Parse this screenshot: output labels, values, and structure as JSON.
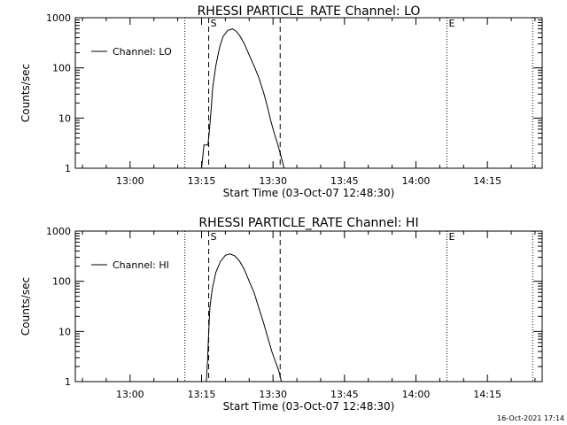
{
  "footer_timestamp": "16-Oct-2021 17:14",
  "chart_data": [
    {
      "type": "line",
      "title": "RHESSI PARTICLE_RATE Channel: LO",
      "xlabel": "Start Time (03-Oct-07 12:48:30)",
      "ylabel": "Counts/sec",
      "yscale": "log",
      "xlim": [
        "12:48:30",
        "14:26:30"
      ],
      "ylim": [
        1,
        1000
      ],
      "x_ticks": [
        "13:00",
        "13:15",
        "13:30",
        "13:45",
        "14:00",
        "14:15"
      ],
      "y_ticks": [
        "1",
        "10",
        "100",
        "1000"
      ],
      "legend": {
        "position": "top-left",
        "label": "Channel: LO"
      },
      "markers": [
        {
          "label": "S",
          "time": "13:16:30",
          "style": "dashed"
        },
        {
          "label": "E",
          "time": "14:06:30",
          "style": "dotted"
        }
      ],
      "vlines": [
        {
          "time": "13:11:30",
          "style": "dotted"
        },
        {
          "time": "13:16:30",
          "style": "dashed"
        },
        {
          "time": "13:31:30",
          "style": "dashed"
        },
        {
          "time": "14:06:30",
          "style": "dotted"
        },
        {
          "time": "14:24:30",
          "style": "dotted"
        }
      ],
      "series": [
        {
          "name": "Channel: LO",
          "points": [
            [
              "13:15:00",
              1.0
            ],
            [
              "13:15:20",
              2.0
            ],
            [
              "13:15:30",
              2.9
            ],
            [
              "13:16:20",
              2.9
            ],
            [
              "13:16:40",
              6.0
            ],
            [
              "13:17:00",
              15
            ],
            [
              "13:17:20",
              40
            ],
            [
              "13:18:00",
              110
            ],
            [
              "13:18:45",
              250
            ],
            [
              "13:19:30",
              420
            ],
            [
              "13:20:30",
              560
            ],
            [
              "13:21:30",
              600
            ],
            [
              "13:22:15",
              540
            ],
            [
              "13:23:00",
              440
            ],
            [
              "13:24:00",
              300
            ],
            [
              "13:25:00",
              180
            ],
            [
              "13:26:00",
              110
            ],
            [
              "13:27:00",
              65
            ],
            [
              "13:28:00",
              33
            ],
            [
              "13:28:45",
              18
            ],
            [
              "13:29:30",
              9
            ],
            [
              "13:30:15",
              5
            ],
            [
              "13:31:00",
              3.0
            ],
            [
              "13:31:30",
              2.0
            ],
            [
              "13:32:20",
              1.0
            ]
          ]
        }
      ]
    },
    {
      "type": "line",
      "title": "RHESSI PARTICLE_RATE Channel: HI",
      "xlabel": "Start Time (03-Oct-07 12:48:30)",
      "ylabel": "Counts/sec",
      "yscale": "log",
      "xlim": [
        "12:48:30",
        "14:26:30"
      ],
      "ylim": [
        1,
        1000
      ],
      "x_ticks": [
        "13:00",
        "13:15",
        "13:30",
        "13:45",
        "14:00",
        "14:15"
      ],
      "y_ticks": [
        "1",
        "10",
        "100",
        "1000"
      ],
      "legend": {
        "position": "top-left",
        "label": "Channel: HI"
      },
      "markers": [
        {
          "label": "S",
          "time": "13:16:30",
          "style": "dashed"
        },
        {
          "label": "E",
          "time": "14:06:30",
          "style": "dotted"
        }
      ],
      "vlines": [
        {
          "time": "13:11:30",
          "style": "dotted"
        },
        {
          "time": "13:16:30",
          "style": "dashed"
        },
        {
          "time": "13:31:30",
          "style": "dashed"
        },
        {
          "time": "14:06:30",
          "style": "dotted"
        },
        {
          "time": "14:24:30",
          "style": "dotted"
        }
      ],
      "series": [
        {
          "name": "Channel: HI",
          "points": [
            [
              "13:16:00",
              1.0
            ],
            [
              "13:16:15",
              2.5
            ],
            [
              "13:16:30",
              10
            ],
            [
              "13:16:45",
              30
            ],
            [
              "13:17:15",
              70
            ],
            [
              "13:18:00",
              150
            ],
            [
              "13:19:00",
              250
            ],
            [
              "13:20:00",
              330
            ],
            [
              "13:21:00",
              350
            ],
            [
              "13:22:00",
              320
            ],
            [
              "13:23:00",
              250
            ],
            [
              "13:24:00",
              170
            ],
            [
              "13:25:00",
              100
            ],
            [
              "13:26:00",
              60
            ],
            [
              "13:27:00",
              30
            ],
            [
              "13:28:00",
              15
            ],
            [
              "13:29:00",
              7
            ],
            [
              "13:29:45",
              4
            ],
            [
              "13:30:30",
              2.5
            ],
            [
              "13:31:15",
              1.6
            ],
            [
              "13:31:45",
              1.0
            ]
          ]
        }
      ]
    }
  ]
}
